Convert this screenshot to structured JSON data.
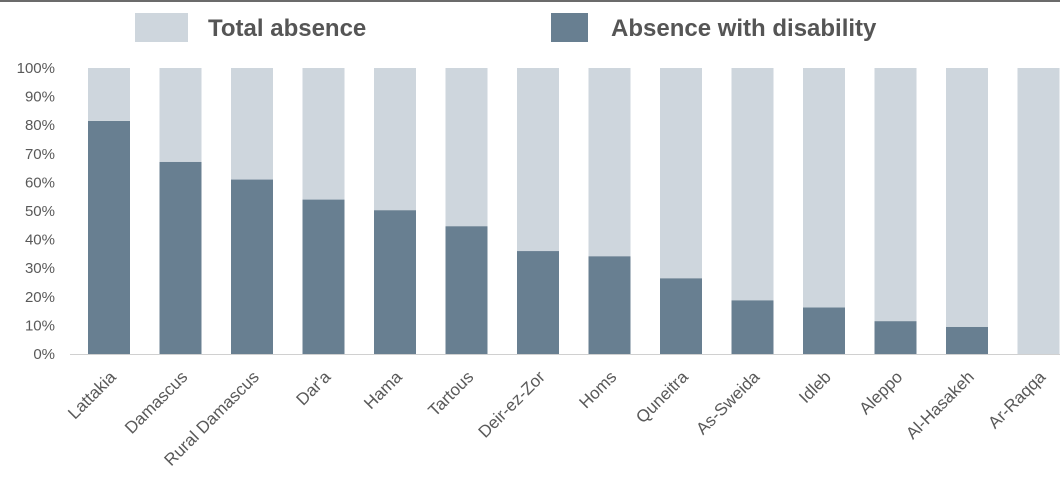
{
  "chart_data": {
    "type": "bar",
    "stacked": true,
    "percent_stacked": true,
    "title": "",
    "xlabel": "",
    "ylabel": "",
    "categories": [
      "Lattakia",
      "Damascus",
      "Rural Damascus",
      "Dar'a",
      "Hama",
      "Tartous",
      "Deir-ez-Zor",
      "Homs",
      "Quneitra",
      "As-Sweida",
      "Idleb",
      "Aleppo",
      "Al-Hasakeh",
      "Ar-Raqqa"
    ],
    "series": [
      {
        "name": "Absence with disability",
        "color": "#687f91",
        "values": [
          81.5,
          67.2,
          61.0,
          54.0,
          50.3,
          44.7,
          36.0,
          34.2,
          26.5,
          18.8,
          16.3,
          11.5,
          9.5,
          0.0
        ]
      },
      {
        "name": "Total absence",
        "color": "#ced6dd",
        "values": [
          18.5,
          32.8,
          39.0,
          46.0,
          49.7,
          55.3,
          64.0,
          65.8,
          73.5,
          81.2,
          83.7,
          88.5,
          90.5,
          100.0
        ]
      }
    ],
    "legend": {
      "position": "top",
      "entries": [
        {
          "label": "Total absence",
          "color": "#ced6dd"
        },
        {
          "label": "Absence with disability",
          "color": "#687f91"
        }
      ]
    },
    "ylim": [
      0,
      100
    ],
    "y_ticks": [
      "0%",
      "10%",
      "20%",
      "30%",
      "40%",
      "50%",
      "60%",
      "70%",
      "80%",
      "90%",
      "100%"
    ],
    "grid": false,
    "x_label_rotation": -45
  }
}
